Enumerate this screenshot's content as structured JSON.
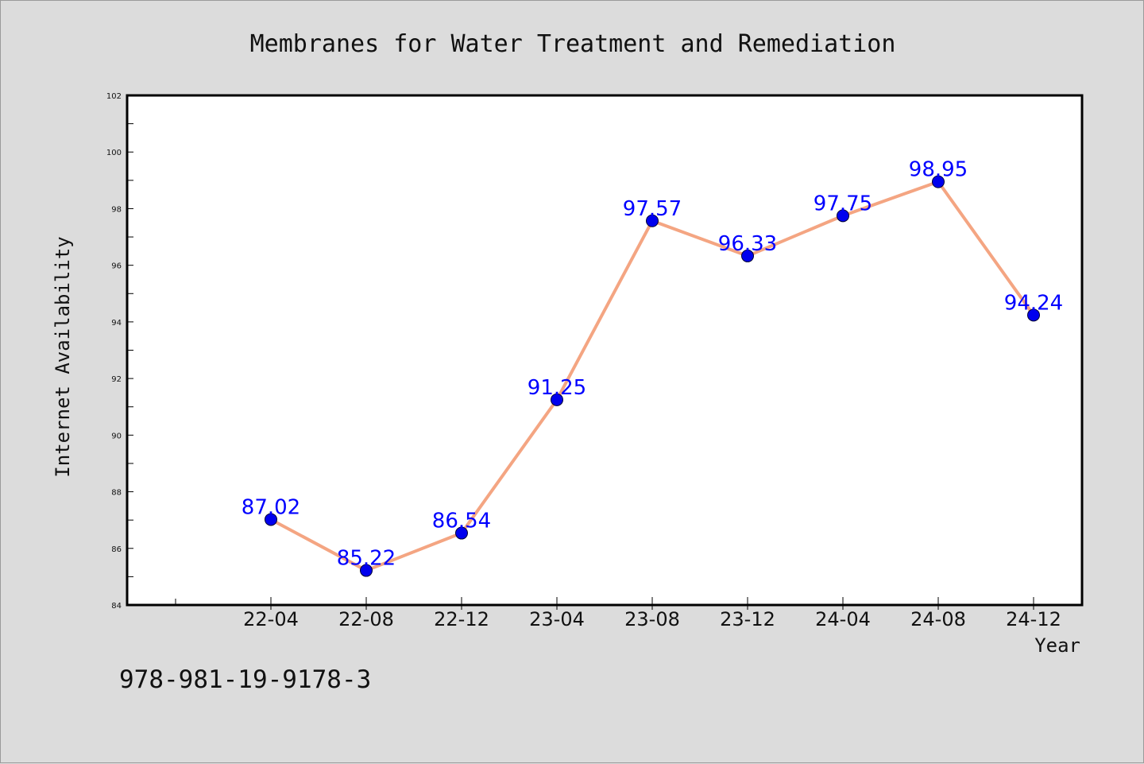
{
  "chart_data": {
    "type": "line",
    "title": "Membranes for Water Treatment and Remediation",
    "xlabel": "Year",
    "ylabel": "Internet Availability",
    "categories": [
      "22-04",
      "22-08",
      "22-12",
      "23-04",
      "23-08",
      "23-12",
      "24-04",
      "24-08",
      "24-12"
    ],
    "series": [
      {
        "values": [
          87.02,
          85.22,
          86.54,
          91.25,
          97.57,
          96.33,
          97.75,
          98.95,
          94.24
        ]
      }
    ],
    "ylim": [
      84,
      102
    ],
    "yticks": [
      84,
      86,
      88,
      90,
      92,
      94,
      96,
      98,
      100,
      102
    ],
    "grid": false,
    "legend": "none",
    "show_data_labels": true
  },
  "footer": {
    "isbn": "978-981-19-9178-3"
  },
  "colors": {
    "line": "#f4a582",
    "marker": "#0000ee",
    "data_label": "#0000ff",
    "plot_background": "#ffffff",
    "figure_background": "#dcdcdc",
    "axes": "#000000"
  }
}
